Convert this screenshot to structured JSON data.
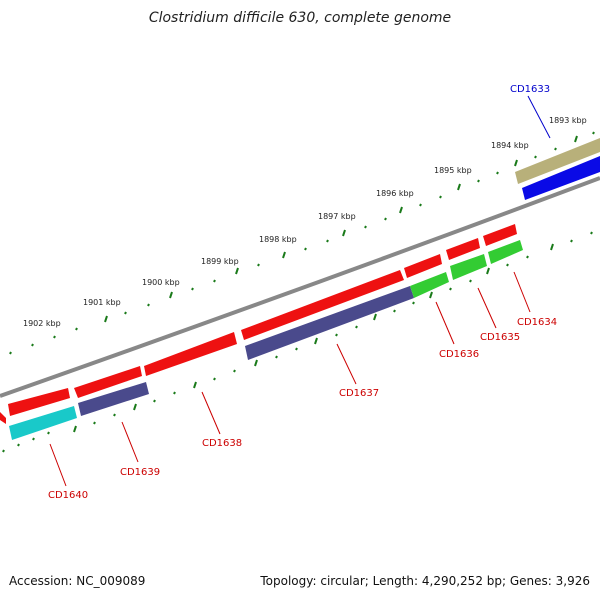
{
  "title": "Clostridium difficile 630, complete genome",
  "footer": {
    "accession": "Accession: NC_009089",
    "summary": "Topology: circular; Length: 4,290,252 bp; Genes: 3,926"
  },
  "ruler_labels": [
    "1893 kbp",
    "1894 kbp",
    "1895 kbp",
    "1896 kbp",
    "1897 kbp",
    "1898 kbp",
    "1899 kbp",
    "1900 kbp",
    "1901 kbp",
    "1902 kbp"
  ],
  "gene_labels": [
    "CD1633",
    "CD1634",
    "CD1635",
    "CD1636",
    "CD1637",
    "CD1638",
    "CD1639",
    "CD1640"
  ],
  "colors": {
    "backbone": "#888888",
    "tick": "#1a7a1a",
    "red": "#ee1111",
    "purple": "#4a4a8c",
    "green": "#33cc33",
    "cyan": "#19c9c9",
    "khaki": "#b8b07a",
    "blue": "#0a0ae6",
    "label_red": "#cc0000",
    "label_blue": "#0000cc"
  }
}
